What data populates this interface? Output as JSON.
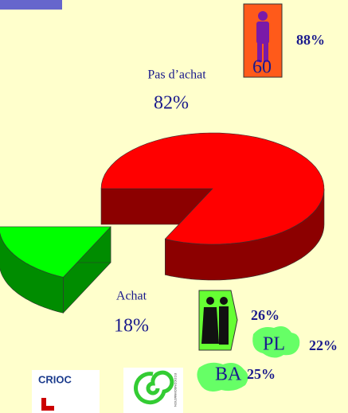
{
  "chart_data": {
    "type": "pie",
    "categories": [
      "Pas d’achat",
      "Achat"
    ],
    "values": [
      82,
      18
    ],
    "value_labels": [
      "82%",
      "18%"
    ],
    "colors": [
      "#ff0000",
      "#00ff00"
    ],
    "exploded": [
      false,
      true
    ]
  },
  "annotations": [
    "60",
    "88%",
    "26%",
    "PL",
    "22%",
    "BA",
    "25%"
  ],
  "logos": [
    "CRIOC",
    "ECOCONSOMMATION"
  ]
}
